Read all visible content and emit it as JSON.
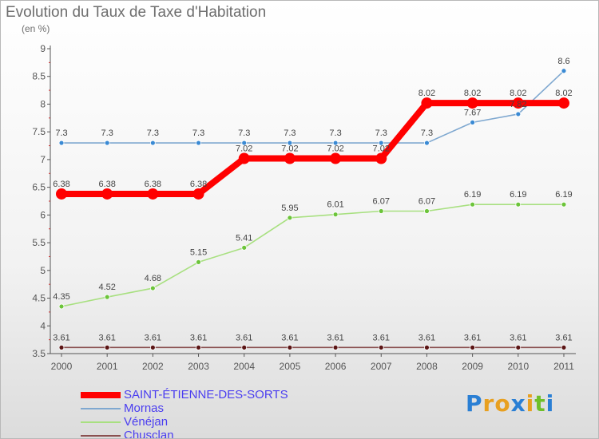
{
  "title": "Evolution du Taux de Taxe d'Habitation",
  "subtitle": "(en %)",
  "logo": {
    "letters": [
      "P",
      "r",
      "o",
      "x",
      "i",
      "t",
      "i"
    ],
    "colors": [
      "#2a7fd4",
      "#e8a020",
      "#e8a020",
      "#2a7fd4",
      "#e8a020",
      "#6fbf2a",
      "#2a7fd4"
    ]
  },
  "colors": {
    "axis": "#555555",
    "grid_tick": "#d03030",
    "label": "#555555"
  },
  "chart_data": {
    "type": "line",
    "title": "Evolution du Taux de Taxe d'Habitation",
    "subtitle": "(en %)",
    "x": [
      "2000",
      "2001",
      "2002",
      "2003",
      "2004",
      "2005",
      "2006",
      "2007",
      "2008",
      "2009",
      "2010",
      "2011"
    ],
    "ylim": [
      3.5,
      9
    ],
    "yticks": [
      "3.5",
      "4",
      "4.5",
      "5",
      "5.5",
      "6",
      "6.5",
      "7",
      "7.5",
      "8",
      "8.5",
      "9"
    ],
    "grid": false,
    "legend_position": "bottom-left",
    "series": [
      {
        "name": "SAINT-ÉTIENNE-DES-SORTS",
        "color": "#ff0000",
        "values": [
          6.38,
          6.38,
          6.38,
          6.38,
          7.02,
          7.02,
          7.02,
          7.02,
          8.02,
          8.02,
          8.02,
          8.02
        ],
        "labels": [
          "6.38",
          "6.38",
          "6.38",
          "6.38",
          "7.02",
          "7.02",
          "7.02",
          "7.02",
          "8.02",
          "8.02",
          "8.02",
          "8.02"
        ]
      },
      {
        "name": "Mornas",
        "color": "#7fa8d0",
        "marker": "#3a8ad4",
        "values": [
          7.3,
          7.3,
          7.3,
          7.3,
          7.3,
          7.3,
          7.3,
          7.3,
          7.3,
          7.67,
          7.82,
          8.6
        ],
        "labels": [
          "7.3",
          "7.3",
          "7.3",
          "7.3",
          "7.3",
          "7.3",
          "7.3",
          "7.3",
          "7.3",
          "7.67",
          "7.82",
          "8.6"
        ]
      },
      {
        "name": "Vénéjan",
        "color": "#a8e080",
        "marker": "#6cc43a",
        "values": [
          4.35,
          4.52,
          4.68,
          5.15,
          5.41,
          5.95,
          6.01,
          6.07,
          6.07,
          6.19,
          6.19,
          6.19
        ],
        "labels": [
          "4.35",
          "4.52",
          "4.68",
          "5.15",
          "5.41",
          "5.95",
          "6.01",
          "6.07",
          "6.07",
          "6.19",
          "6.19",
          "6.19"
        ]
      },
      {
        "name": "Chusclan",
        "color": "#8a5050",
        "marker": "#5a1414",
        "values": [
          3.61,
          3.61,
          3.61,
          3.61,
          3.61,
          3.61,
          3.61,
          3.61,
          3.61,
          3.61,
          3.61,
          3.61
        ],
        "labels": [
          "3.61",
          "3.61",
          "3.61",
          "3.61",
          "3.61",
          "3.61",
          "3.61",
          "3.61",
          "3.61",
          "3.61",
          "3.61",
          "3.61"
        ]
      }
    ]
  }
}
